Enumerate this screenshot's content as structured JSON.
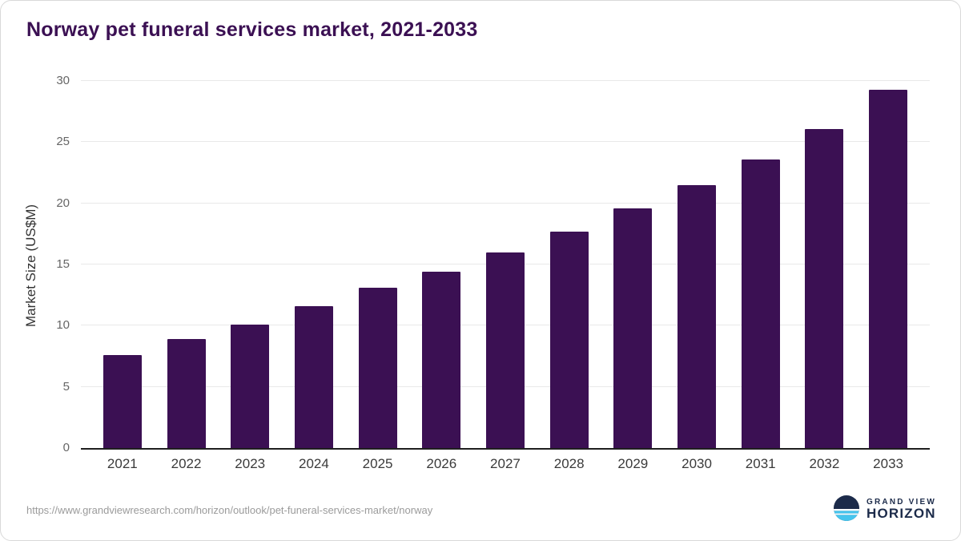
{
  "title": "Norway pet funeral services market, 2021-2033",
  "footer": {
    "source_url": "https://www.grandviewresearch.com/horizon/outlook/pet-funeral-services-market/norway",
    "logo_line1": "GRAND VIEW",
    "logo_line2": "HORIZON"
  },
  "colors": {
    "bar": "#3b1053",
    "title": "#3b1053",
    "grid": "#e9e9e9",
    "axis": "#1f1f1f",
    "tick_label": "#666666",
    "x_label": "#3a3a3a",
    "logo_navy": "#1c2b4a",
    "logo_blue": "#45c5ee"
  },
  "chart_data": {
    "type": "bar",
    "title": "Norway pet funeral services market, 2021-2033",
    "categories": [
      "2021",
      "2022",
      "2023",
      "2024",
      "2025",
      "2026",
      "2027",
      "2028",
      "2029",
      "2030",
      "2031",
      "2032",
      "2033"
    ],
    "values": [
      7.6,
      8.9,
      10.1,
      11.6,
      13.1,
      14.4,
      16.0,
      17.7,
      19.6,
      21.5,
      23.6,
      26.1,
      29.3
    ],
    "xlabel": "",
    "ylabel": "Market Size (US$M)",
    "ylim": [
      0,
      30
    ],
    "yticks": [
      0,
      5,
      10,
      15,
      20,
      25,
      30
    ],
    "grid": true,
    "legend": false,
    "bar_color": "#3b1053"
  }
}
